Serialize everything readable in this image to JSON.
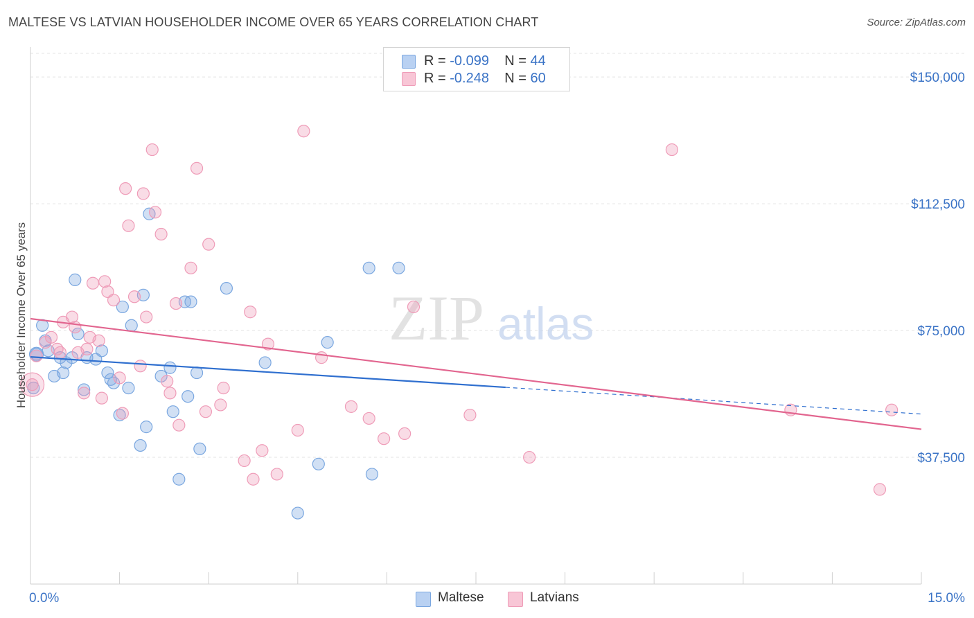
{
  "header": {
    "title": "MALTESE VS LATVIAN HOUSEHOLDER INCOME OVER 65 YEARS CORRELATION CHART",
    "source": "Source: ZipAtlas.com"
  },
  "watermark": {
    "zip": "ZIP",
    "atlas": "atlas"
  },
  "legend_top": {
    "rows": [
      {
        "r_label": "R =",
        "r_value": "-0.099",
        "n_label": "N =",
        "n_value": "44"
      },
      {
        "r_label": "R =",
        "r_value": "-0.248",
        "n_label": "N =",
        "n_value": "60"
      }
    ]
  },
  "legend_bottom": {
    "series_a": "Maltese",
    "series_b": "Latvians"
  },
  "chart_data": {
    "type": "scatter",
    "title": "MALTESE VS LATVIAN HOUSEHOLDER INCOME OVER 65 YEARS CORRELATION CHART",
    "ylabel": "Householder Income Over 65 years",
    "xlabel": "",
    "xlim": [
      0,
      15
    ],
    "ylim": [
      0,
      157000
    ],
    "x_tick_labels": [
      "0.0%",
      "15.0%"
    ],
    "y_ticks": [
      37500,
      75000,
      112500,
      150000
    ],
    "y_tick_labels": [
      "$37,500",
      "$75,000",
      "$112,500",
      "$150,000"
    ],
    "grid": true,
    "colors": {
      "maltese": "#7aa7e0",
      "latvians": "#ef9cb8",
      "maltese_line": "#2f6fcf",
      "latvians_line": "#e2658f",
      "axis_text": "#3a73c6"
    },
    "series": [
      {
        "name": "Maltese",
        "points": [
          [
            0.05,
            58000
          ],
          [
            0.1,
            68000
          ],
          [
            0.2,
            76500
          ],
          [
            0.25,
            72000
          ],
          [
            0.3,
            69000
          ],
          [
            0.4,
            61500
          ],
          [
            0.5,
            67000
          ],
          [
            0.55,
            62500
          ],
          [
            0.6,
            65500
          ],
          [
            0.7,
            67000
          ],
          [
            0.75,
            90000
          ],
          [
            0.8,
            74000
          ],
          [
            0.9,
            57500
          ],
          [
            0.95,
            67000
          ],
          [
            1.1,
            66500
          ],
          [
            1.2,
            69000
          ],
          [
            1.3,
            62500
          ],
          [
            1.35,
            60500
          ],
          [
            1.4,
            59500
          ],
          [
            1.5,
            50000
          ],
          [
            1.55,
            82000
          ],
          [
            1.65,
            58000
          ],
          [
            1.7,
            76500
          ],
          [
            1.85,
            41000
          ],
          [
            1.9,
            85500
          ],
          [
            1.95,
            46500
          ],
          [
            2.0,
            109500
          ],
          [
            2.2,
            61500
          ],
          [
            2.35,
            64000
          ],
          [
            2.4,
            51000
          ],
          [
            2.5,
            31000
          ],
          [
            2.6,
            83500
          ],
          [
            2.65,
            55500
          ],
          [
            2.7,
            83500
          ],
          [
            2.8,
            62500
          ],
          [
            2.85,
            40000
          ],
          [
            3.3,
            87500
          ],
          [
            3.95,
            65500
          ],
          [
            4.5,
            21000
          ],
          [
            4.85,
            35500
          ],
          [
            5.0,
            71500
          ],
          [
            5.7,
            93500
          ],
          [
            5.75,
            32500
          ],
          [
            6.2,
            93500
          ]
        ]
      },
      {
        "name": "Latvians",
        "points": [
          [
            0.03,
            59000
          ],
          [
            0.1,
            67500
          ],
          [
            0.25,
            71500
          ],
          [
            0.35,
            73000
          ],
          [
            0.45,
            69500
          ],
          [
            0.5,
            68500
          ],
          [
            0.55,
            77500
          ],
          [
            0.7,
            79000
          ],
          [
            0.75,
            76000
          ],
          [
            0.8,
            68500
          ],
          [
            0.9,
            56500
          ],
          [
            0.95,
            69500
          ],
          [
            1.0,
            73000
          ],
          [
            1.05,
            89000
          ],
          [
            1.15,
            72000
          ],
          [
            1.2,
            55000
          ],
          [
            1.25,
            89500
          ],
          [
            1.3,
            86500
          ],
          [
            1.4,
            84000
          ],
          [
            1.5,
            61000
          ],
          [
            1.55,
            50500
          ],
          [
            1.6,
            117000
          ],
          [
            1.65,
            106000
          ],
          [
            1.75,
            85000
          ],
          [
            1.85,
            64500
          ],
          [
            1.9,
            115500
          ],
          [
            1.95,
            79000
          ],
          [
            2.05,
            128500
          ],
          [
            2.1,
            110000
          ],
          [
            2.2,
            103500
          ],
          [
            2.3,
            60000
          ],
          [
            2.35,
            56500
          ],
          [
            2.45,
            83000
          ],
          [
            2.5,
            47000
          ],
          [
            2.7,
            93500
          ],
          [
            2.8,
            123000
          ],
          [
            2.95,
            51000
          ],
          [
            3.0,
            100500
          ],
          [
            3.2,
            53000
          ],
          [
            3.25,
            58000
          ],
          [
            3.6,
            36500
          ],
          [
            3.7,
            80500
          ],
          [
            3.75,
            31000
          ],
          [
            3.9,
            39500
          ],
          [
            4.0,
            71000
          ],
          [
            4.15,
            32500
          ],
          [
            4.5,
            45500
          ],
          [
            4.6,
            134000
          ],
          [
            4.9,
            67000
          ],
          [
            5.4,
            52500
          ],
          [
            5.7,
            49000
          ],
          [
            5.95,
            43000
          ],
          [
            6.3,
            44500
          ],
          [
            6.45,
            82000
          ],
          [
            7.4,
            50000
          ],
          [
            8.4,
            37500
          ],
          [
            10.8,
            128500
          ],
          [
            12.8,
            51500
          ],
          [
            14.3,
            28000
          ],
          [
            14.5,
            51500
          ]
        ]
      }
    ],
    "trend_lines": [
      {
        "name": "Maltese",
        "start": [
          0,
          67200
        ],
        "end_solid": [
          8.0,
          58200
        ],
        "end_dashed": [
          15.0,
          50300
        ]
      },
      {
        "name": "Latvians",
        "start": [
          0,
          78500
        ],
        "end": [
          15.0,
          45800
        ]
      }
    ]
  }
}
